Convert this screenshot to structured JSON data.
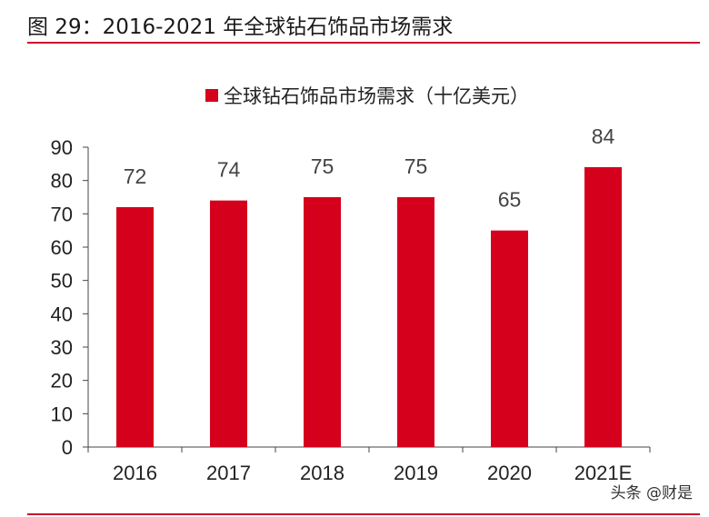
{
  "figure_title": "图 29：2016-2021 年全球钻石饰品市场需求",
  "watermark": "头条 @财是",
  "colors": {
    "bar": "#d5001c",
    "rule": "#c8102e",
    "axis": "#444444",
    "label": "#444444"
  },
  "chart_data": {
    "type": "bar",
    "title": "",
    "xlabel": "",
    "ylabel": "",
    "categories": [
      "2016",
      "2017",
      "2018",
      "2019",
      "2020",
      "2021E"
    ],
    "series": [
      {
        "name": "全球钻石饰品市场需求（十亿美元）",
        "values": [
          72,
          74,
          75,
          75,
          65,
          84
        ]
      }
    ],
    "ylim": [
      0,
      90
    ],
    "yticks": [
      0,
      10,
      20,
      30,
      40,
      50,
      60,
      70,
      80,
      90
    ],
    "grid": false,
    "legend": "top-center",
    "data_labels": true
  }
}
